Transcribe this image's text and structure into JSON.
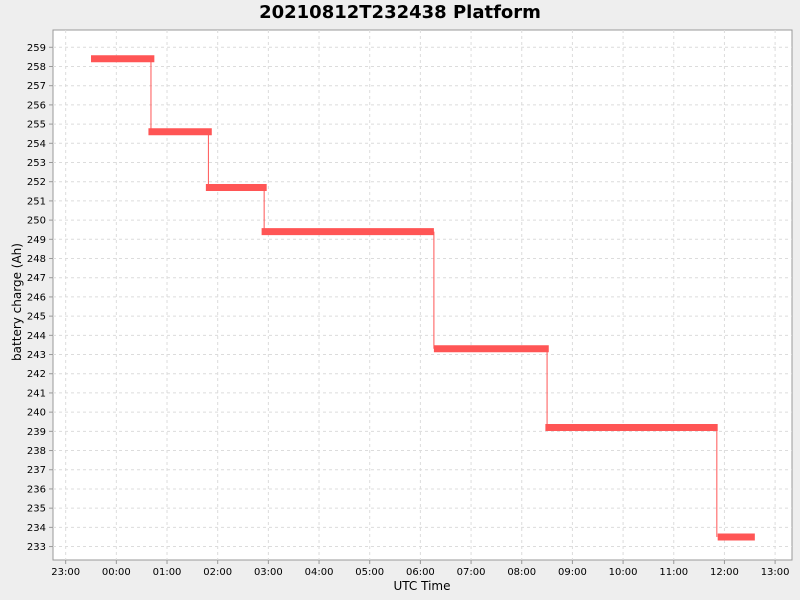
{
  "chart_data": {
    "type": "line",
    "title": "20210812T232438 Platform",
    "xlabel": "UTC Time",
    "ylabel": "battery charge (Ah)",
    "x_ticks": [
      "23:00",
      "00:00",
      "01:00",
      "02:00",
      "03:00",
      "04:00",
      "05:00",
      "06:00",
      "07:00",
      "08:00",
      "09:00",
      "10:00",
      "11:00",
      "12:00",
      "13:00"
    ],
    "y_ticks": [
      233,
      234,
      235,
      236,
      237,
      238,
      239,
      240,
      241,
      242,
      243,
      244,
      245,
      246,
      247,
      248,
      249,
      250,
      251,
      252,
      253,
      254,
      255,
      256,
      257,
      258,
      259
    ],
    "xlim": [
      "2021-08-12T22:45",
      "2021-08-13T13:20"
    ],
    "ylim": [
      232.3,
      259.9
    ],
    "grid": true,
    "color": "#ff5555",
    "series": [
      {
        "segments": [
          {
            "start": "2021-08-12T23:30",
            "end": "2021-08-13T00:45",
            "value": 258.4
          },
          {
            "start": "2021-08-13T00:38",
            "end": "2021-08-13T01:53",
            "value": 254.6
          },
          {
            "start": "2021-08-13T01:46",
            "end": "2021-08-13T02:58",
            "value": 251.7
          },
          {
            "start": "2021-08-13T02:52",
            "end": "2021-08-13T06:16",
            "value": 249.4
          },
          {
            "start": "2021-08-13T06:16",
            "end": "2021-08-13T08:32",
            "value": 243.3
          },
          {
            "start": "2021-08-13T08:28",
            "end": "2021-08-13T11:52",
            "value": 239.2
          },
          {
            "start": "2021-08-13T11:52",
            "end": "2021-08-13T12:36",
            "value": 233.5
          }
        ],
        "transitions": [
          {
            "time": "2021-08-13T00:41",
            "from": 258.4,
            "to": 254.6
          },
          {
            "time": "2021-08-13T01:49",
            "from": 254.6,
            "to": 251.7
          },
          {
            "time": "2021-08-13T02:55",
            "from": 251.7,
            "to": 249.4
          },
          {
            "time": "2021-08-13T06:16",
            "from": 249.4,
            "to": 243.3
          },
          {
            "time": "2021-08-13T08:30",
            "from": 243.3,
            "to": 239.2
          },
          {
            "time": "2021-08-13T11:51",
            "from": 239.2,
            "to": 233.5
          }
        ]
      }
    ]
  }
}
